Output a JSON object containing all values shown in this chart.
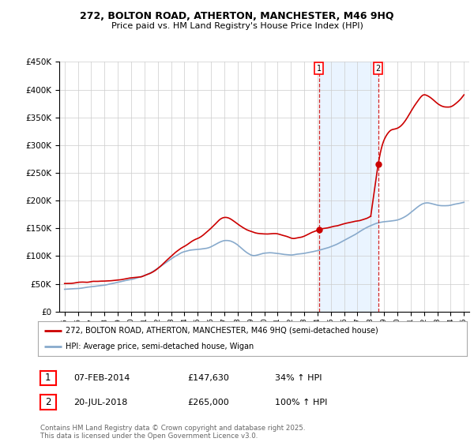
{
  "title": "272, BOLTON ROAD, ATHERTON, MANCHESTER, M46 9HQ",
  "subtitle": "Price paid vs. HM Land Registry's House Price Index (HPI)",
  "legend_property": "272, BOLTON ROAD, ATHERTON, MANCHESTER, M46 9HQ (semi-detached house)",
  "legend_hpi": "HPI: Average price, semi-detached house, Wigan",
  "footer": "Contains HM Land Registry data © Crown copyright and database right 2025.\nThis data is licensed under the Open Government Licence v3.0.",
  "annotation1": {
    "label": "1",
    "date_str": "07-FEB-2014",
    "price": 147630,
    "pct": "34% ↑ HPI",
    "year": 2014.1
  },
  "annotation2": {
    "label": "2",
    "date_str": "20-JUL-2018",
    "price": 265000,
    "pct": "100% ↑ HPI",
    "year": 2018.55
  },
  "ylim": [
    0,
    450000
  ],
  "yticks": [
    0,
    50000,
    100000,
    150000,
    200000,
    250000,
    300000,
    350000,
    400000,
    450000
  ],
  "xlim_start": 1994.6,
  "xlim_end": 2025.4,
  "property_color": "#cc0000",
  "hpi_color": "#88aacc",
  "vline_color": "#cc0000",
  "shade_color": "#ddeeff",
  "background_color": "#ffffff"
}
